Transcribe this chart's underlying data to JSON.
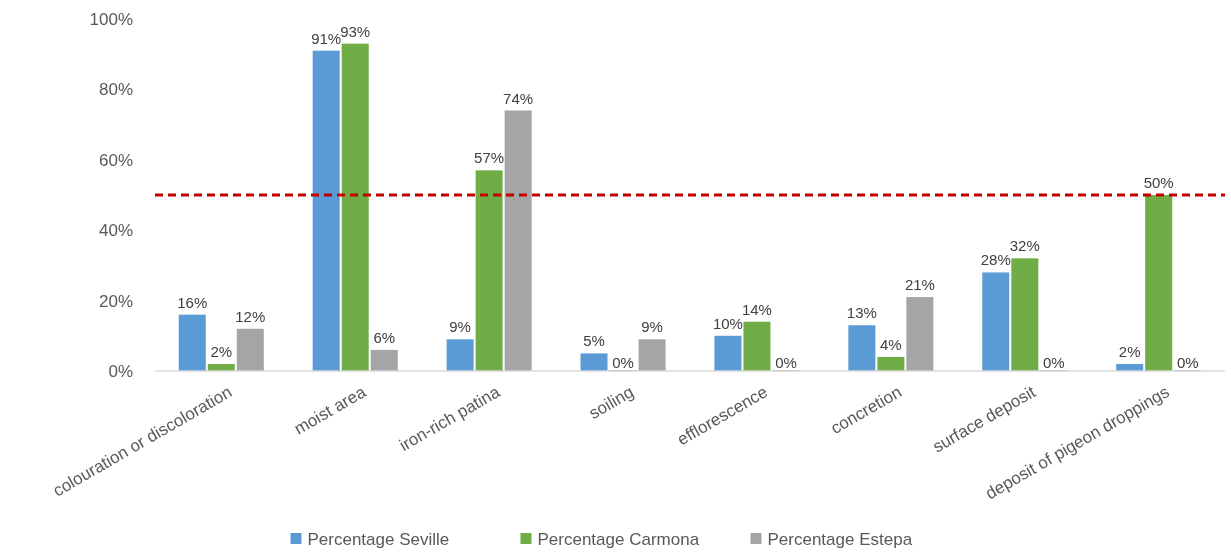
{
  "chart_data": {
    "type": "bar",
    "categories": [
      "colouration or discoloration",
      "moist area",
      "iron-rich patina",
      "soiling",
      "efflorescence",
      "concretion",
      "surface deposit",
      "deposit of pigeon droppings"
    ],
    "series": [
      {
        "name": "Percentage Seville",
        "color": "#5b9bd5",
        "values": [
          16,
          91,
          9,
          5,
          10,
          13,
          28,
          2
        ],
        "value_labels": [
          "16%",
          "91%",
          "9%",
          "5%",
          "10%",
          "13%",
          "28%",
          "2%"
        ]
      },
      {
        "name": "Percentage Carmona",
        "color": "#70ad47",
        "values": [
          2,
          93,
          57,
          0,
          14,
          4,
          32,
          50
        ],
        "value_labels": [
          "2%",
          "93%",
          "57%",
          "0%",
          "14%",
          "4%",
          "32%",
          "50%"
        ]
      },
      {
        "name": "Percentage Estepa",
        "color": "#a5a5a5",
        "values": [
          12,
          6,
          74,
          9,
          0,
          21,
          0,
          0
        ],
        "value_labels": [
          "12%",
          "6%",
          "74%",
          "9%",
          "0%",
          "21%",
          "0%",
          "0%"
        ]
      }
    ],
    "ylim": [
      0,
      100
    ],
    "yticks": [
      {
        "value": 0,
        "label": "0%"
      },
      {
        "value": 20,
        "label": "20%"
      },
      {
        "value": 40,
        "label": "40%"
      },
      {
        "value": 60,
        "label": "60%"
      },
      {
        "value": 80,
        "label": "80%"
      },
      {
        "value": 100,
        "label": "100%"
      }
    ],
    "ref_lines": [
      {
        "axis": "y",
        "value": 50,
        "color": "#c00000",
        "line_style": "dashed"
      }
    ],
    "grid": false,
    "legend": "bottom"
  }
}
